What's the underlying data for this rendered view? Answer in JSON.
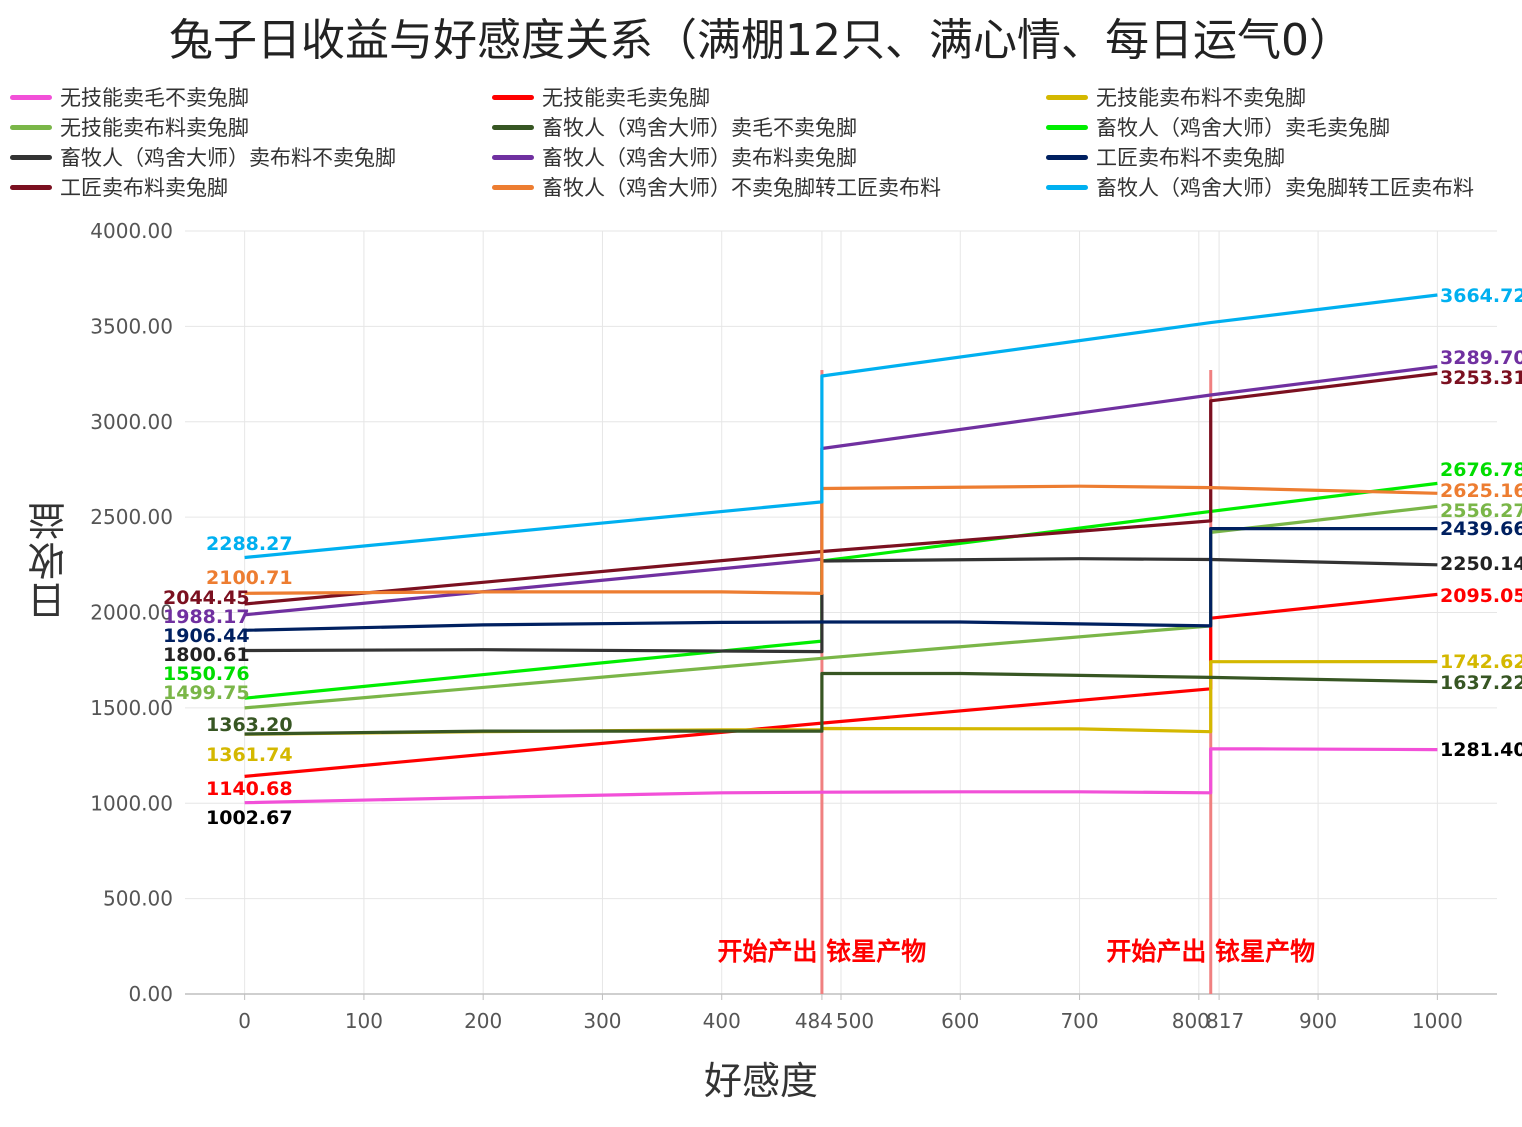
{
  "title": "兔子日收益与好感度关系（满棚12只、满心情、每日运气0）",
  "colors": {
    "grid": "#e6e6e6",
    "axis": "#bfbfbf",
    "marker": "#f08080",
    "annotation": "#ff0000"
  },
  "chart_data": {
    "type": "line",
    "xlabel": "好感度",
    "ylabel": "日收益",
    "xlim": [
      -50,
      1050
    ],
    "ylim": [
      0,
      4000
    ],
    "grid": true,
    "legend": "top",
    "x_ticks": [
      "0",
      "100",
      "200",
      "300",
      "400",
      "484",
      "500",
      "600",
      "700",
      "800",
      "817",
      "900",
      "1000"
    ],
    "x_tick_values": [
      0,
      100,
      200,
      300,
      400,
      484,
      500,
      600,
      700,
      800,
      817,
      900,
      1000
    ],
    "y_ticks": [
      "0.00",
      "500.00",
      "1000.00",
      "1500.00",
      "2000.00",
      "2500.00",
      "3000.00",
      "3500.00",
      "4000.00"
    ],
    "y_tick_values": [
      0,
      500,
      1000,
      1500,
      2000,
      2500,
      3000,
      3500,
      4000
    ],
    "markers": [
      {
        "x": 484,
        "label": "开始产出 铱星产物"
      },
      {
        "x": 810,
        "label": "开始产出 铱星产物"
      }
    ],
    "series": [
      {
        "name": "无技能卖毛不卖兔脚",
        "color": "#f250d8",
        "points": [
          [
            0,
            1002.67
          ],
          [
            200,
            1030
          ],
          [
            400,
            1055
          ],
          [
            484,
            1058
          ],
          [
            600,
            1060
          ],
          [
            700,
            1060
          ],
          [
            810,
            1055
          ],
          [
            810,
            1285
          ],
          [
            850,
            1285
          ],
          [
            1000,
            1281.4
          ]
        ],
        "start_label": "1002.67",
        "start_label_color": "#000000",
        "end_label": "1281.40",
        "end_label_color": "#000000"
      },
      {
        "name": "无技能卖毛卖兔脚",
        "color": "#ff0000",
        "points": [
          [
            0,
            1140.68
          ],
          [
            484,
            1420
          ],
          [
            810,
            1600
          ],
          [
            810,
            1970
          ],
          [
            1000,
            2095.05
          ]
        ],
        "start_label": "1140.68",
        "start_label_color": "#ff0000",
        "end_label": "2095.05",
        "end_label_color": "#ff0000"
      },
      {
        "name": "无技能卖布料不卖兔脚",
        "color": "#d4b800",
        "points": [
          [
            0,
            1361.74
          ],
          [
            200,
            1375
          ],
          [
            400,
            1385
          ],
          [
            484,
            1385
          ],
          [
            484,
            1392
          ],
          [
            700,
            1390
          ],
          [
            810,
            1375
          ],
          [
            810,
            1742
          ],
          [
            1000,
            1742.62
          ]
        ],
        "start_label": "1361.74",
        "start_label_color": "#d4b800",
        "end_label": "1742.62",
        "end_label_color": "#d4b800"
      },
      {
        "name": "无技能卖布料卖兔脚",
        "color": "#7ab648",
        "points": [
          [
            0,
            1499.75
          ],
          [
            484,
            1760
          ],
          [
            810,
            1930
          ],
          [
            810,
            2420
          ],
          [
            1000,
            2556.27
          ]
        ],
        "start_label": "1499.75",
        "start_label_color": "#7ab648",
        "end_label": "2556.27",
        "end_label_color": "#7ab648"
      },
      {
        "name": "畜牧人（鸡舍大师）卖毛不卖兔脚",
        "color": "#375623",
        "points": [
          [
            0,
            1363.2
          ],
          [
            200,
            1378
          ],
          [
            484,
            1378
          ],
          [
            484,
            1680
          ],
          [
            600,
            1680
          ],
          [
            810,
            1660
          ],
          [
            1000,
            1637.22
          ]
        ],
        "start_label": "1363.20",
        "start_label_color": "#375623",
        "end_label": "1637.22",
        "end_label_color": "#375623"
      },
      {
        "name": "畜牧人（鸡舍大师）卖毛卖兔脚",
        "color": "#00ee00",
        "points": [
          [
            0,
            1550.76
          ],
          [
            484,
            1850
          ],
          [
            484,
            2270
          ],
          [
            810,
            2530
          ],
          [
            1000,
            2676.78
          ]
        ],
        "start_label": "1550.76",
        "start_label_color": "#00dd00",
        "end_label": "2676.78",
        "end_label_color": "#00dd00"
      },
      {
        "name": "畜牧人（鸡舍大师）卖布料不卖兔脚",
        "color": "#333333",
        "points": [
          [
            0,
            1800.61
          ],
          [
            200,
            1805
          ],
          [
            484,
            1795
          ],
          [
            484,
            2270
          ],
          [
            700,
            2282
          ],
          [
            810,
            2278
          ],
          [
            1000,
            2250.14
          ]
        ],
        "start_label": "1800.61",
        "start_label_color": "#222222",
        "end_label": "2250.14",
        "end_label_color": "#222222"
      },
      {
        "name": "畜牧人（鸡舍大师）卖布料卖兔脚",
        "color": "#7030a0",
        "points": [
          [
            0,
            1988.17
          ],
          [
            484,
            2280
          ],
          [
            484,
            2860
          ],
          [
            810,
            3140
          ],
          [
            1000,
            3289.7
          ]
        ],
        "start_label": "1988.17",
        "start_label_color": "#7030a0",
        "end_label": "3289.70",
        "end_label_color": "#7030a0"
      },
      {
        "name": "工匠卖布料不卖兔脚",
        "color": "#002060",
        "points": [
          [
            0,
            1906.44
          ],
          [
            200,
            1935
          ],
          [
            400,
            1948
          ],
          [
            484,
            1950
          ],
          [
            600,
            1950
          ],
          [
            810,
            1930
          ],
          [
            810,
            2440
          ],
          [
            1000,
            2439.66
          ]
        ],
        "start_label": "1906.44",
        "start_label_color": "#002060",
        "end_label": "2439.66",
        "end_label_color": "#002060"
      },
      {
        "name": "工匠卖布料卖兔脚",
        "color": "#7b1020",
        "points": [
          [
            0,
            2044.45
          ],
          [
            484,
            2320
          ],
          [
            810,
            2480
          ],
          [
            810,
            3110
          ],
          [
            1000,
            3253.31
          ]
        ],
        "start_label": "2044.45",
        "start_label_color": "#7b1020",
        "end_label": "3253.31",
        "end_label_color": "#7b1020"
      },
      {
        "name": "畜牧人（鸡舍大师）不卖兔脚转工匠卖布料",
        "color": "#ed7d31",
        "points": [
          [
            0,
            2100.71
          ],
          [
            200,
            2108
          ],
          [
            400,
            2108
          ],
          [
            484,
            2100
          ],
          [
            484,
            2650
          ],
          [
            700,
            2662
          ],
          [
            810,
            2655
          ],
          [
            1000,
            2625.16
          ]
        ],
        "start_label": "2100.71",
        "start_label_color": "#ed7d31",
        "end_label": "2625.16",
        "end_label_color": "#ed7d31"
      },
      {
        "name": "畜牧人（鸡舍大师）卖兔脚转工匠卖布料",
        "color": "#00b0f0",
        "points": [
          [
            0,
            2288.27
          ],
          [
            484,
            2580
          ],
          [
            484,
            3240
          ],
          [
            810,
            3520
          ],
          [
            1000,
            3664.72
          ]
        ],
        "start_label": "2288.27",
        "start_label_color": "#00b0f0",
        "end_label": "3664.72",
        "end_label_color": "#00b0f0"
      }
    ]
  }
}
